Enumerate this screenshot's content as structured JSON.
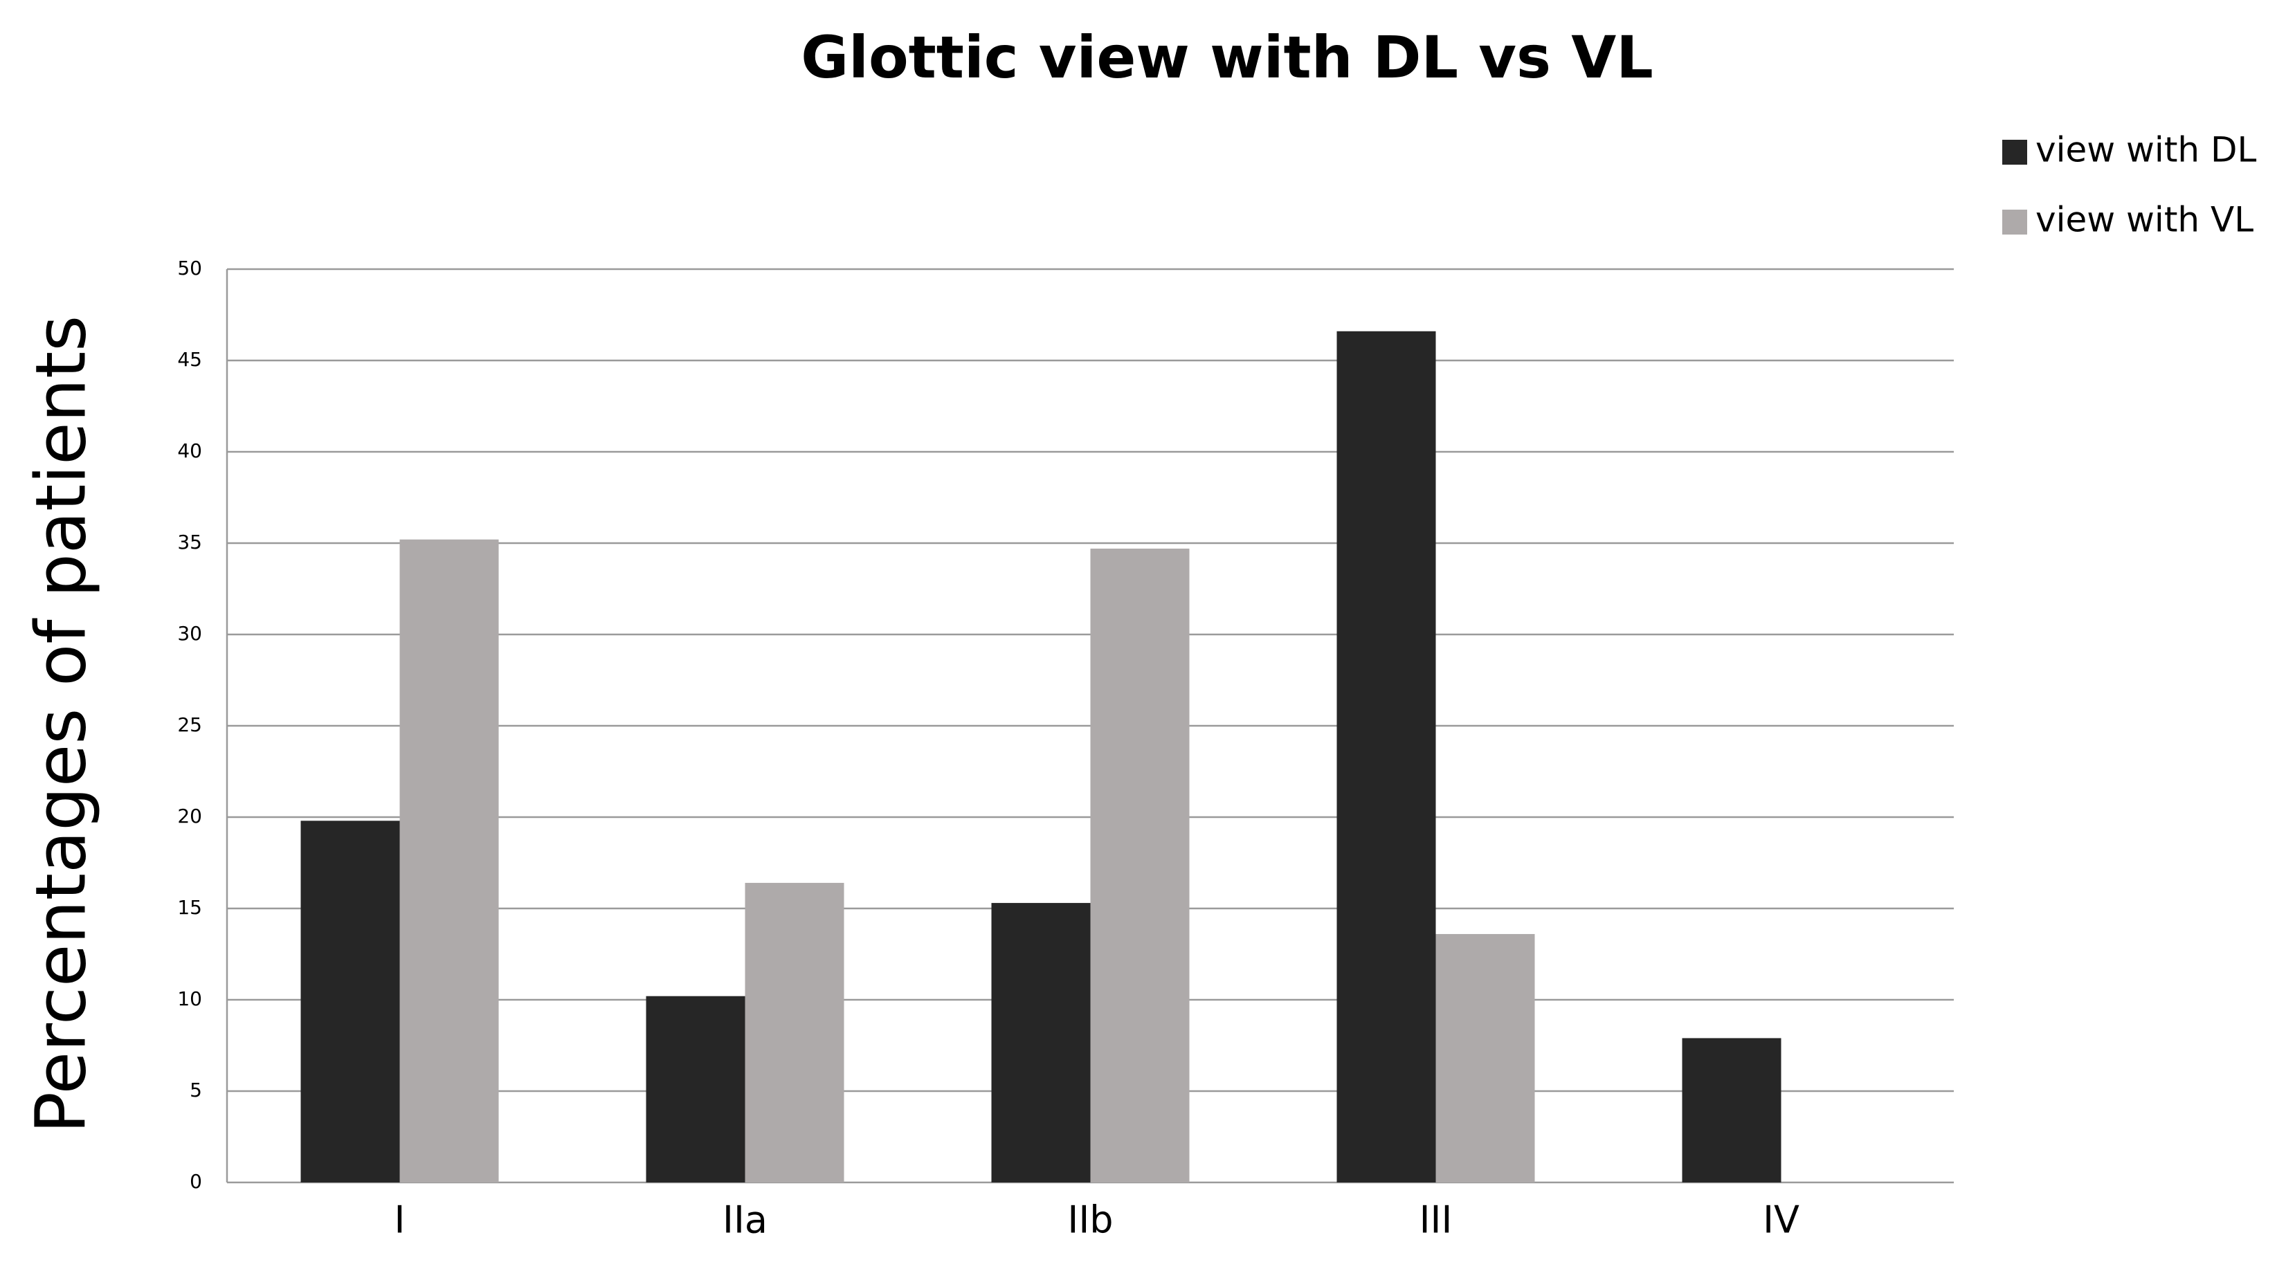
{
  "chart_data": {
    "type": "bar",
    "title": "Glottic view with DL vs VL",
    "y_label": "Percentages of patients",
    "categories": [
      "I",
      "IIa",
      "IIb",
      "III",
      "IV"
    ],
    "series": [
      {
        "name": "view with DL",
        "color": "#262626",
        "values": [
          19.8,
          10.2,
          15.3,
          46.6,
          7.9
        ]
      },
      {
        "name": "view with VL",
        "color": "#aeaaaa",
        "values": [
          35.2,
          16.4,
          34.7,
          13.6,
          0
        ]
      }
    ],
    "ylim": [
      0,
      50
    ],
    "yticks": [
      0,
      5,
      10,
      15,
      20,
      25,
      30,
      35,
      40,
      45,
      50
    ],
    "grid": true,
    "legend": "top-right"
  }
}
